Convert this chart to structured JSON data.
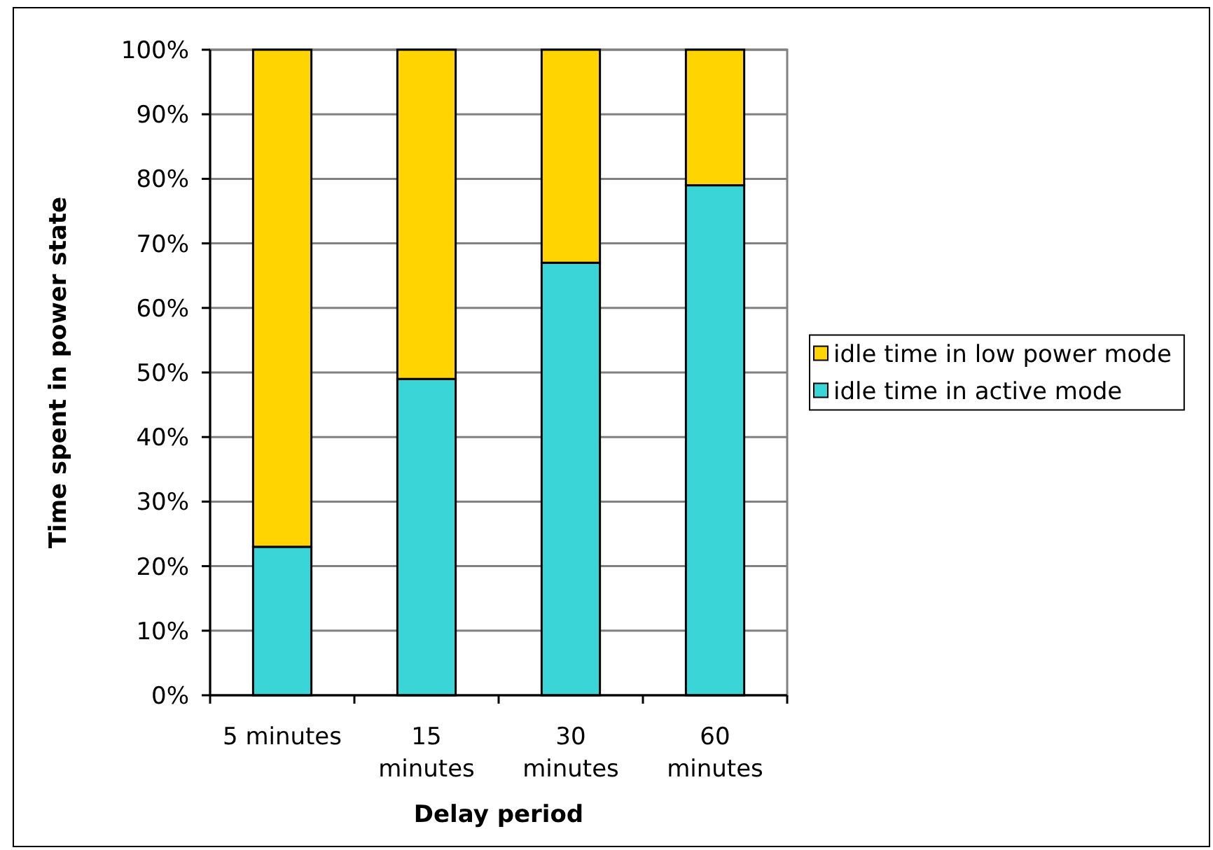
{
  "chart_data": {
    "type": "bar",
    "stacked": true,
    "categories": [
      "5 minutes",
      "15 minutes",
      "30 minutes",
      "60 minutes"
    ],
    "series": [
      {
        "name": "idle time in active mode",
        "color": "#3ad5d6",
        "values": [
          23,
          49,
          67,
          79
        ]
      },
      {
        "name": "idle time in low power mode",
        "color": "#ffd400",
        "values": [
          77,
          51,
          33,
          21
        ]
      }
    ],
    "xlabel": "Delay period",
    "ylabel": "Time spent in power state",
    "ylim": [
      0,
      100
    ],
    "yticks": [
      {
        "value": 0,
        "label": "0%"
      },
      {
        "value": 10,
        "label": "10%"
      },
      {
        "value": 20,
        "label": "20%"
      },
      {
        "value": 30,
        "label": "30%"
      },
      {
        "value": 40,
        "label": "40%"
      },
      {
        "value": 50,
        "label": "50%"
      },
      {
        "value": 60,
        "label": "60%"
      },
      {
        "value": 70,
        "label": "70%"
      },
      {
        "value": 80,
        "label": "80%"
      },
      {
        "value": 90,
        "label": "90%"
      },
      {
        "value": 100,
        "label": "100%"
      }
    ],
    "grid": "y",
    "legend": "right"
  }
}
